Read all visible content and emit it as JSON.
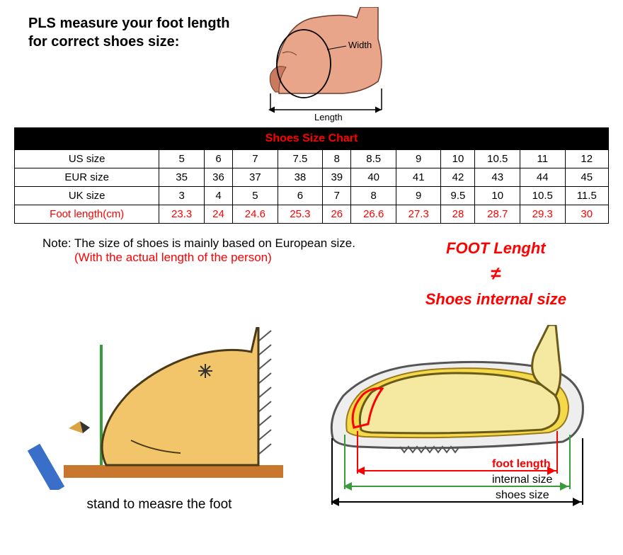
{
  "top": {
    "instruction_l1": "PLS measure your foot length",
    "instruction_l2": "for correct shoes size:",
    "width_label": "Width",
    "length_label": "Length",
    "foot_fill": "#e8a58a",
    "foot_shade": "#c97a5e",
    "foot_outline": "#6b3a2a"
  },
  "table": {
    "header": "Shoes Size Chart",
    "header_bg": "#000000",
    "header_color": "#ff0000",
    "cell_bg": "#ffffff",
    "border_color": "#000000",
    "foot_row_color": "#ff0000",
    "rows": [
      {
        "label": "US size",
        "values": [
          "5",
          "6",
          "7",
          "7.5",
          "8",
          "8.5",
          "9",
          "10",
          "10.5",
          "11",
          "12"
        ]
      },
      {
        "label": "EUR size",
        "values": [
          "35",
          "36",
          "37",
          "38",
          "39",
          "40",
          "41",
          "42",
          "43",
          "44",
          "45"
        ]
      },
      {
        "label": "UK size",
        "values": [
          "3",
          "4",
          "5",
          "6",
          "7",
          "8",
          "9",
          "9.5",
          "10",
          "10.5",
          "11.5"
        ]
      },
      {
        "label": "Foot length(cm)",
        "values": [
          "23.3",
          "24",
          "24.6",
          "25.3",
          "26",
          "26.6",
          "27.3",
          "28",
          "28.7",
          "29.3",
          "30"
        ],
        "red": true
      }
    ]
  },
  "note": {
    "line1": "Note: The size of shoes is mainly based on European size.",
    "line2": "(With the actual length of the person)",
    "right_l1": "FOOT Lenght",
    "right_neq": "≠",
    "right_l2": "Shoes internal size",
    "red": "#ff0000"
  },
  "diag_left": {
    "caption": "stand to measre the foot",
    "foot_fill": "#f2c56a",
    "foot_outline": "#4a3a1a",
    "floor": "#c9762f",
    "wall_hatch": "#555555",
    "green": "#3a9b3a",
    "pencil_body": "#3a6fc9",
    "pencil_tip": "#d9a441",
    "star": "#333333"
  },
  "diag_right": {
    "outsole_fill": "#eeeeee",
    "outsole_stroke": "#555555",
    "insole_fill": "#f4d94a",
    "foot_fill": "#f5e8a0",
    "foot_stroke": "#6a5a1a",
    "red": "#ff0000",
    "green": "#3a9b3a",
    "lbl_foot": "foot length",
    "lbl_internal": "internal size",
    "lbl_shoes": "shoes size"
  }
}
